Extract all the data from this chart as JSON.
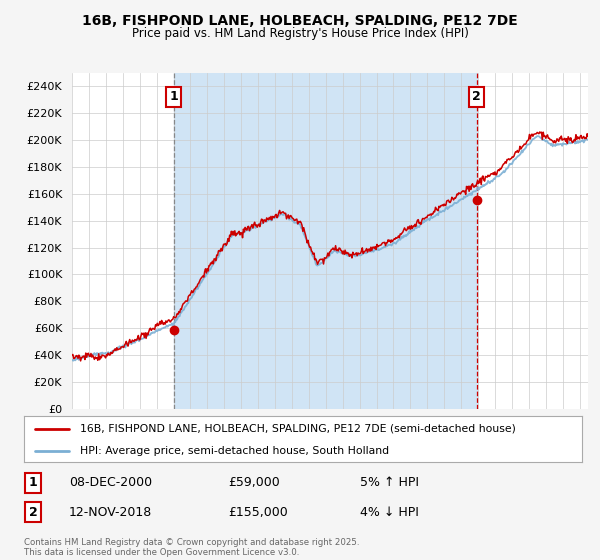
{
  "title": "16B, FISHPOND LANE, HOLBEACH, SPALDING, PE12 7DE",
  "subtitle": "Price paid vs. HM Land Registry's House Price Index (HPI)",
  "ytick_values": [
    0,
    20000,
    40000,
    60000,
    80000,
    100000,
    120000,
    140000,
    160000,
    180000,
    200000,
    220000,
    240000
  ],
  "ylim": [
    0,
    250000
  ],
  "hpi_color": "#7bafd4",
  "price_color": "#cc0000",
  "bg_color": "#f5f5f5",
  "plot_bg_color": "#ffffff",
  "grid_color": "#cccccc",
  "shade_color": "#d0e4f5",
  "sale1_x": 2001.0,
  "sale1_y": 59000,
  "sale2_x": 2018.92,
  "sale2_y": 155000,
  "legend_line1": "16B, FISHPOND LANE, HOLBEACH, SPALDING, PE12 7DE (semi-detached house)",
  "legend_line2": "HPI: Average price, semi-detached house, South Holland",
  "note1_label": "1",
  "note1_date": "08-DEC-2000",
  "note1_price": "£59,000",
  "note1_hpi": "5% ↑ HPI",
  "note2_label": "2",
  "note2_date": "12-NOV-2018",
  "note2_price": "£155,000",
  "note2_hpi": "4% ↓ HPI",
  "copyright": "Contains HM Land Registry data © Crown copyright and database right 2025.\nThis data is licensed under the Open Government Licence v3.0.",
  "xmin": 1995,
  "xmax": 2025.5
}
